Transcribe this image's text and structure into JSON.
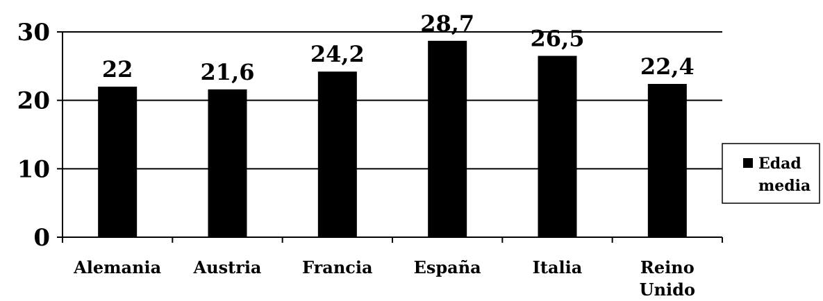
{
  "chart_data": {
    "type": "bar",
    "categories": [
      [
        "Alemania"
      ],
      [
        "Austria"
      ],
      [
        "Francia"
      ],
      [
        "España"
      ],
      [
        "Italia"
      ],
      [
        "Reino",
        "Unido"
      ]
    ],
    "series": [
      {
        "name": "Edad media",
        "values": [
          22,
          21.6,
          24.2,
          28.7,
          26.5,
          22.4
        ],
        "labels": [
          "22",
          "21,6",
          "24,2",
          "28,7",
          "26,5",
          "22,4"
        ],
        "color": "#000000"
      }
    ],
    "yticks": [
      "0",
      "10",
      "20",
      "30"
    ],
    "ylim": [
      0,
      30
    ],
    "grid": true,
    "legend": {
      "position": "right",
      "label_lines": [
        "Edad",
        "media"
      ]
    }
  }
}
